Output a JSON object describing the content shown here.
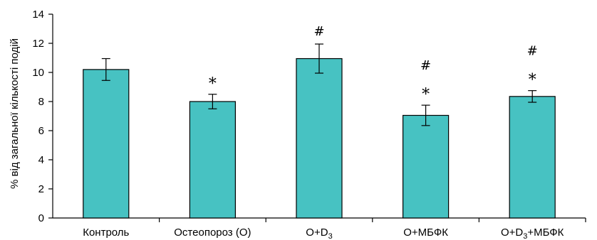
{
  "chart_data": {
    "type": "bar",
    "categories": [
      {
        "pre": "Контроль",
        "sub": "",
        "post": ""
      },
      {
        "pre": "Остеопороз (О)",
        "sub": "",
        "post": ""
      },
      {
        "pre": "О+D",
        "sub": "3",
        "post": ""
      },
      {
        "pre": "О+МБФК",
        "sub": "",
        "post": ""
      },
      {
        "pre": "О+D",
        "sub": "3",
        "post": "+МБФК"
      }
    ],
    "values": [
      10.2,
      8.0,
      10.95,
      7.05,
      8.35
    ],
    "errors": [
      0.75,
      0.5,
      1.0,
      0.7,
      0.4
    ],
    "markers": [
      {
        "star": "",
        "hash": ""
      },
      {
        "star": "*",
        "hash": ""
      },
      {
        "star": "",
        "hash": "#"
      },
      {
        "star": "*",
        "hash": "#"
      },
      {
        "star": "*",
        "hash": "#"
      }
    ],
    "ylabel": "% від загальної кількості подій",
    "ylim": [
      0,
      14
    ],
    "yticks": [
      0,
      2,
      4,
      6,
      8,
      10,
      12,
      14
    ],
    "bar_color": "#47c2c2",
    "grid": false,
    "legend": "none"
  }
}
